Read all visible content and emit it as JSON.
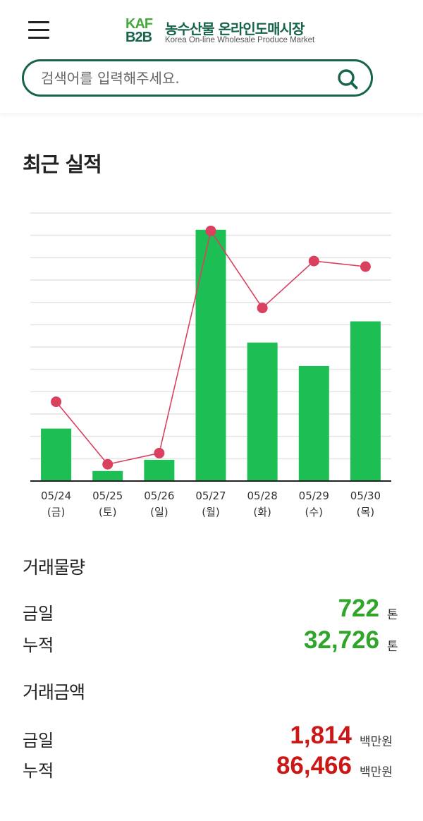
{
  "header": {
    "logo_line1": "KAF",
    "logo_line2": "B2B",
    "logo_title": "농수산물 온라인도매시장",
    "logo_subtitle": "Korea On-line Wholesale Produce Market",
    "menu_icon": "hamburger-menu-icon"
  },
  "search": {
    "placeholder": "검색어를 입력해주세요.",
    "icon": "search-icon"
  },
  "recent": {
    "title": "최근 실적"
  },
  "colors": {
    "brand_dark": "#17644a",
    "brand_green": "#46a83a",
    "bar": "#1dbf55",
    "line": "#d9415f",
    "volume": "#2fa52a",
    "amount": "#cc1717"
  },
  "chart_data": {
    "type": "bar",
    "categories": [
      "05/24",
      "05/25",
      "05/26",
      "05/27",
      "05/28",
      "05/29",
      "05/30"
    ],
    "category_sublabels": [
      "(금)",
      "(토)",
      "(일)",
      "(월)",
      "(화)",
      "(수)",
      "(목)"
    ],
    "series": [
      {
        "type": "bar",
        "values": [
          235,
          45,
          95,
          1125,
          620,
          515,
          715
        ]
      },
      {
        "type": "line",
        "values": [
          355,
          75,
          125,
          1120,
          775,
          985,
          960
        ]
      }
    ],
    "ylim": [
      0,
      1200
    ],
    "grid": true,
    "yaxis_labels": false,
    "legend": "none"
  },
  "volume": {
    "title": "거래물량",
    "today_label": "금일",
    "today_value": "722",
    "today_unit": "톤",
    "total_label": "누적",
    "total_value": "32,726",
    "total_unit": "톤"
  },
  "amount": {
    "title": "거래금액",
    "today_label": "금일",
    "today_value": "1,814",
    "today_unit": "백만원",
    "total_label": "누적",
    "total_value": "86,466",
    "total_unit": "백만원"
  }
}
